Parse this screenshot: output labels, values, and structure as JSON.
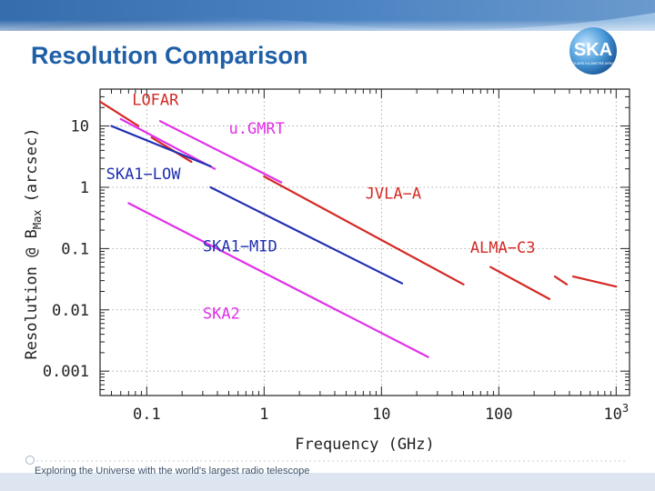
{
  "slide": {
    "title": "Resolution Comparison",
    "footer": "Exploring the Universe with the world's largest radio telescope",
    "logo_text": "SKA",
    "logo_subtext": "SQUARE KILOMETRE ARRAY"
  },
  "colors": {
    "title": "#1f5fa8",
    "red": "#d42a24",
    "magenta": "#e030e8",
    "blue": "#2030b0"
  },
  "chart_data": {
    "type": "line",
    "xscale": "log",
    "yscale": "log",
    "xlim": [
      0.04,
      1300
    ],
    "ylim": [
      0.0004,
      40
    ],
    "xlabel": "Frequency (GHz)",
    "ylabel_prefix": "Resolution @ B",
    "ylabel_sub": "Max",
    "ylabel_suffix": "(arcsec)",
    "xticks": [
      {
        "value": 0.1,
        "label": "0.1"
      },
      {
        "value": 1,
        "label": "1"
      },
      {
        "value": 10,
        "label": "10"
      },
      {
        "value": 100,
        "label": "100"
      },
      {
        "value": 1000,
        "label": "10",
        "sup": "3"
      }
    ],
    "yticks": [
      {
        "value": 10,
        "label": "10"
      },
      {
        "value": 1,
        "label": "1"
      },
      {
        "value": 0.1,
        "label": "0.1"
      },
      {
        "value": 0.01,
        "label": "0.01"
      },
      {
        "value": 0.001,
        "label": "0.001"
      }
    ],
    "series": [
      {
        "name": "LOFAR",
        "color": "#d42a24",
        "label": {
          "text": "LOFAR",
          "x": 0.075,
          "y": 22
        },
        "segments": [
          [
            [
              0.04,
              25
            ],
            [
              0.085,
              10
            ]
          ],
          [
            [
              0.11,
              6.5
            ],
            [
              0.24,
              2.6
            ]
          ]
        ]
      },
      {
        "name": "u.GMRT",
        "color": "#e030e8",
        "label": {
          "text": "u.GMRT",
          "x": 0.5,
          "y": 7.5
        },
        "segments": [
          [
            [
              0.06,
              13
            ],
            [
              0.38,
              2.0
            ]
          ],
          [
            [
              0.13,
              12
            ],
            [
              1.4,
              1.2
            ]
          ]
        ]
      },
      {
        "name": "JVLA-A",
        "color": "#d42a24",
        "label": {
          "text": "JVLA−A",
          "x": 7.3,
          "y": 0.65
        },
        "segments": [
          [
            [
              1.0,
              1.5
            ],
            [
              50,
              0.026
            ]
          ]
        ]
      },
      {
        "name": "ALMA-C3",
        "color": "#d42a24",
        "label": {
          "text": "ALMA−C3",
          "x": 57,
          "y": 0.085
        },
        "segments": [
          [
            [
              85,
              0.05
            ],
            [
              270,
              0.015
            ]
          ],
          [
            [
              300,
              0.035
            ],
            [
              380,
              0.026
            ]
          ],
          [
            [
              430,
              0.035
            ],
            [
              1000,
              0.024
            ]
          ]
        ]
      },
      {
        "name": "SKA1-LOW",
        "color": "#2030b0",
        "label": {
          "text": "SKA1−LOW",
          "x": 0.045,
          "y": 1.35
        },
        "segments": [
          [
            [
              0.05,
              10
            ],
            [
              0.35,
              2.2
            ]
          ]
        ]
      },
      {
        "name": "SKA1-MID",
        "color": "#2030b0",
        "label": {
          "text": "SKA1−MID",
          "x": 0.3,
          "y": 0.09
        },
        "segments": [
          [
            [
              0.35,
              1.0
            ],
            [
              15,
              0.027
            ]
          ]
        ]
      },
      {
        "name": "SKA2",
        "color": "#e030e8",
        "label": {
          "text": "SKA2",
          "x": 0.3,
          "y": 0.0072
        },
        "segments": [
          [
            [
              0.07,
              0.55
            ],
            [
              25,
              0.0017
            ]
          ]
        ]
      }
    ]
  }
}
